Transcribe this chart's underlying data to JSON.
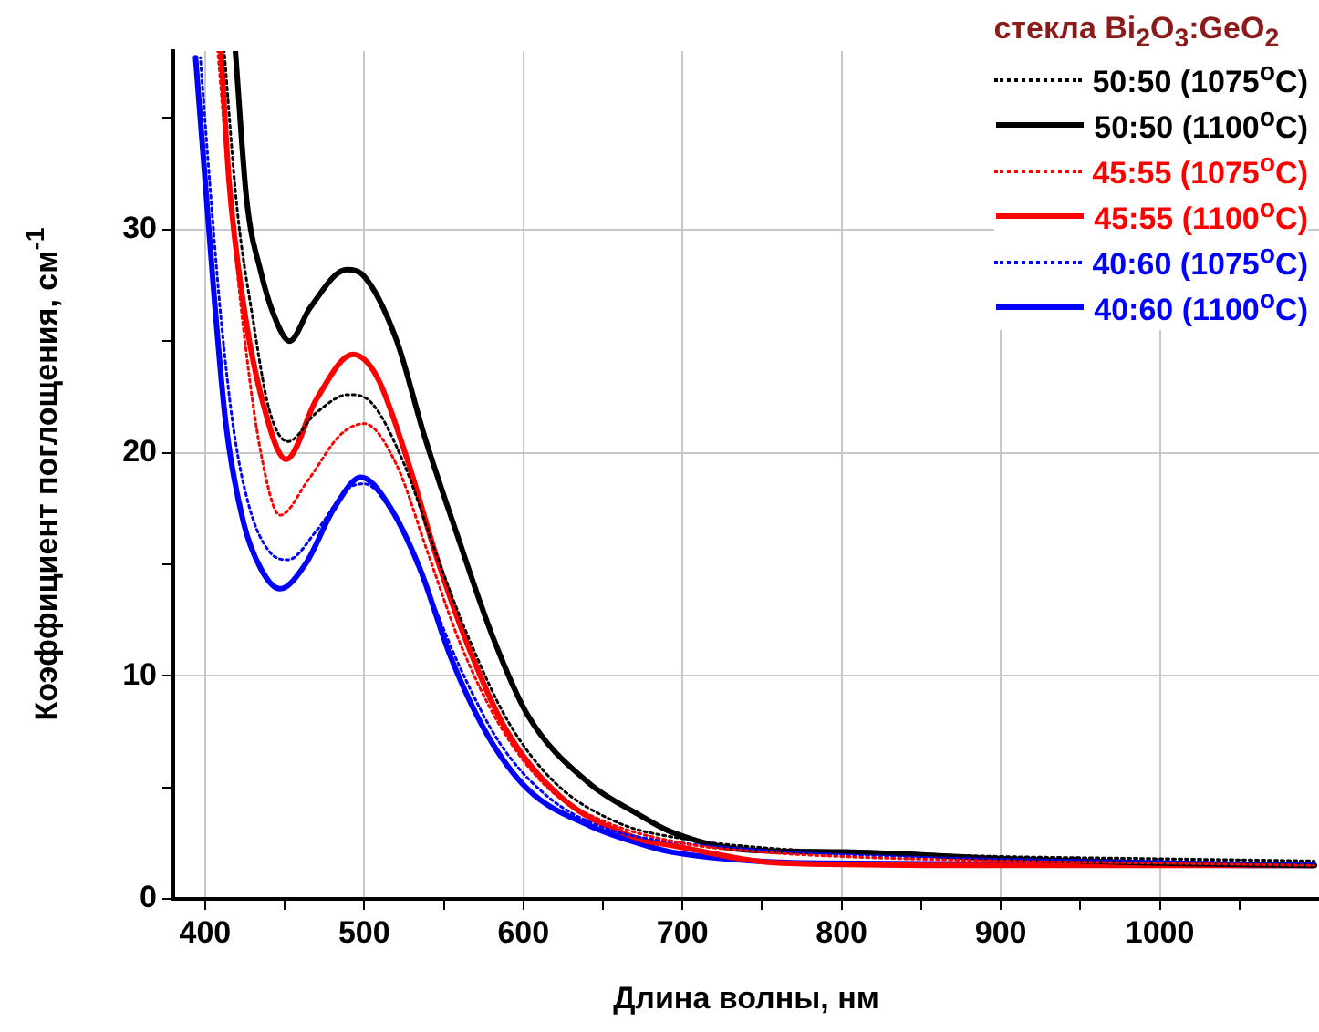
{
  "chart_data": {
    "type": "line",
    "xlabel": "Длина волны, нм",
    "ylabel": "Коэффициент поглощения, см$^{-1}$",
    "legend_title": "стекла Bi$_{2}$O$_{3}$:GeO$_{2}$",
    "legend": "top right",
    "grid": true,
    "xlim": [
      380,
      1100
    ],
    "ylim": [
      0,
      38
    ],
    "xticks": [
      400,
      {
        "value": 450,
        "label": null
      },
      500,
      {
        "value": 550,
        "label": null
      },
      600,
      {
        "value": 650,
        "label": null
      },
      700,
      {
        "value": 750,
        "label": null
      },
      800,
      {
        "value": 850,
        "label": null
      },
      900,
      {
        "value": 950,
        "label": null
      },
      1000,
      {
        "value": 1050,
        "label": null
      }
    ],
    "yticks": [
      0,
      {
        "value": 5,
        "label": null
      },
      10,
      {
        "value": 15,
        "label": null
      },
      20,
      {
        "value": 25,
        "label": null
      },
      30,
      {
        "value": 35,
        "label": null
      }
    ],
    "series": [
      {
        "name": "50:50 (1075$^{o}$C)",
        "color": "#000000",
        "line_style": "dotted",
        "x": [
          412,
          420,
          430,
          440,
          452,
          470,
          490,
          505,
          525,
          545,
          565,
          590,
          620,
          660,
          700,
          750,
          800,
          900,
          1000,
          1097
        ],
        "values": [
          38,
          31,
          26,
          22,
          20.5,
          21.8,
          22.6,
          22.2,
          19.5,
          15.5,
          11.8,
          8,
          5.2,
          3.4,
          2.7,
          2.3,
          2.1,
          1.9,
          1.8,
          1.7
        ]
      },
      {
        "name": "50:50 (1100$^{o}$C)",
        "color": "#000000",
        "line_style": "solid",
        "x": [
          419,
          426,
          435,
          443,
          453,
          466,
          489,
          500,
          520,
          538,
          558,
          581,
          603,
          641,
          672,
          693,
          740,
          802,
          901,
          999,
          1097
        ],
        "values": [
          38,
          31.4,
          28.1,
          26.2,
          25,
          26.5,
          28.2,
          27.9,
          25.1,
          20.7,
          16.4,
          11.7,
          8.2,
          5.2,
          3.8,
          3,
          2.2,
          2.1,
          1.8,
          1.6,
          1.5
        ]
      },
      {
        "name": "45:55 (1075$^{o}$C)",
        "color": "#ff0000",
        "line_style": "dotted",
        "x": [
          408,
          415,
          425,
          435,
          447,
          465,
          485,
          500,
          520,
          540,
          560,
          585,
          615,
          650,
          700,
          750,
          800,
          900,
          1000,
          1097
        ],
        "values": [
          38,
          32,
          25,
          20,
          17.2,
          18.8,
          20.8,
          21.3,
          19.5,
          15.5,
          11.5,
          7.8,
          5,
          3.5,
          2.5,
          2.1,
          1.9,
          1.7,
          1.6,
          1.5
        ]
      },
      {
        "name": "45:55 (1100$^{o}$C)",
        "color": "#ff0000",
        "line_style": "solid",
        "x": [
          410,
          415,
          424,
          435,
          451,
          470,
          493,
          508,
          527,
          546,
          566,
          589,
          623,
          672,
          693,
          763,
          881,
          1097
        ],
        "values": [
          38,
          32.2,
          26.7,
          22.6,
          19.7,
          22.4,
          24.4,
          23.4,
          19.7,
          15.2,
          11.2,
          7.6,
          4.6,
          2.7,
          2.4,
          1.6,
          1.5,
          1.5
        ]
      },
      {
        "name": "40:60 (1075$^{o}$C)",
        "color": "#0000ff",
        "line_style": "dotted",
        "x": [
          397,
          403,
          410,
          418,
          428,
          440,
          452,
          470,
          490,
          500,
          520,
          540,
          560,
          585,
          615,
          650,
          700,
          750,
          800,
          900,
          1000,
          1097
        ],
        "values": [
          37.7,
          32,
          26,
          21,
          17.5,
          15.6,
          15.2,
          16.5,
          18.4,
          18.6,
          17,
          13.8,
          10.4,
          7,
          4.6,
          3.2,
          2.5,
          2.2,
          2,
          1.8,
          1.7,
          1.6
        ]
      },
      {
        "name": "40:60 (1100$^{o}$C)",
        "color": "#0000ff",
        "line_style": "solid",
        "x": [
          394,
          400,
          406,
          413,
          424,
          435,
          447,
          463,
          481,
          498,
          515,
          535,
          554,
          577,
          603,
          641,
          672,
          693,
          786,
          1097
        ],
        "values": [
          37.7,
          32.2,
          26.7,
          21.3,
          16.9,
          14.8,
          13.9,
          15,
          17.5,
          18.9,
          17.7,
          14.8,
          10.9,
          7.4,
          4.9,
          3.3,
          2.5,
          2.1,
          1.6,
          1.5
        ]
      }
    ]
  }
}
